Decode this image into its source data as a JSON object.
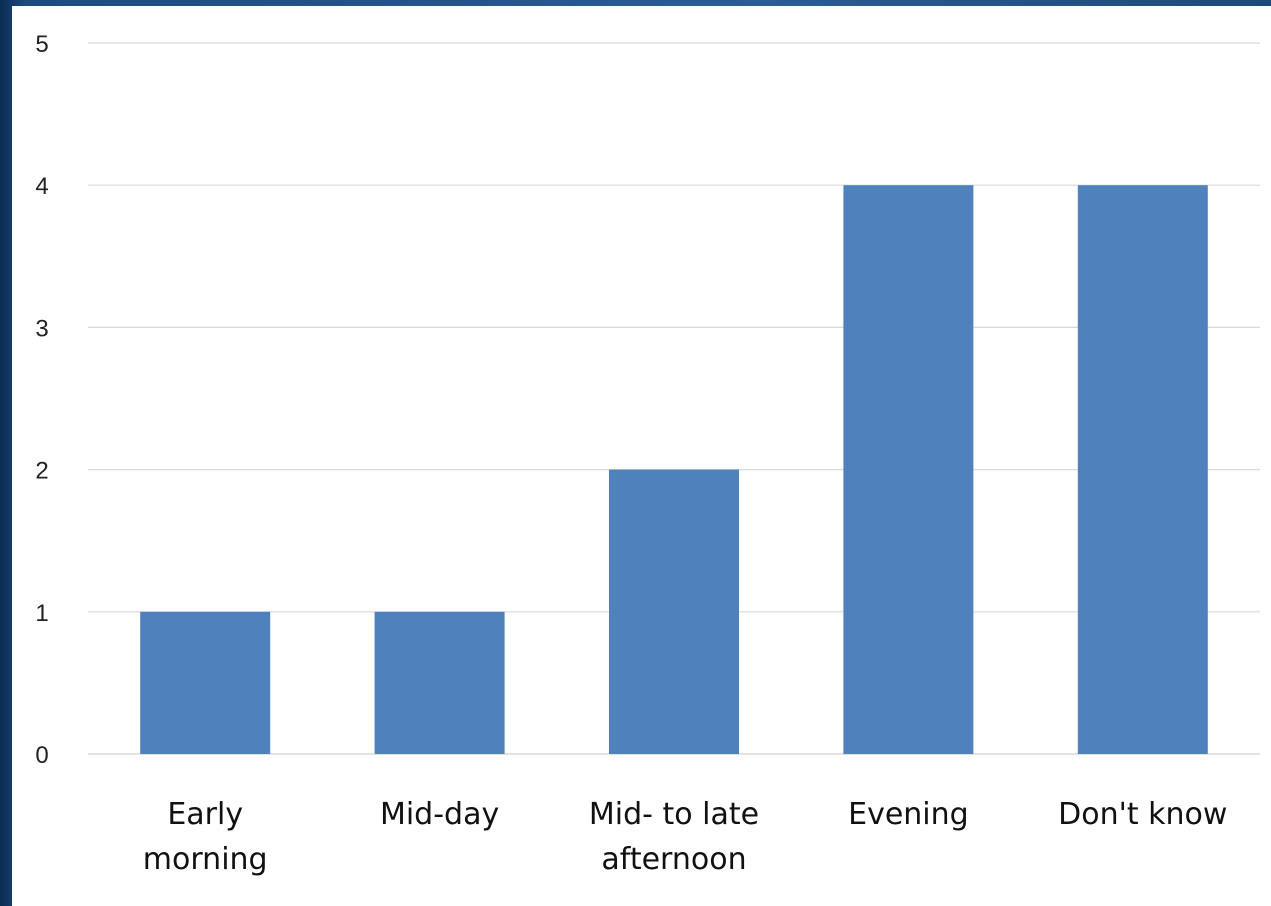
{
  "chart_data": {
    "type": "bar",
    "categories": [
      [
        "Early",
        "morning"
      ],
      [
        "Mid-day"
      ],
      [
        "Mid- to late",
        "afternoon"
      ],
      [
        "Evening"
      ],
      [
        "Don't know"
      ]
    ],
    "values": [
      1,
      1,
      2,
      4,
      4
    ],
    "ylim": [
      0,
      5
    ],
    "yticks": [
      "0",
      "1",
      "2",
      "3",
      "4",
      "5"
    ],
    "grid": true,
    "colors": {
      "bar": "#4f81bd",
      "gridline": "#d9d9d9"
    }
  }
}
